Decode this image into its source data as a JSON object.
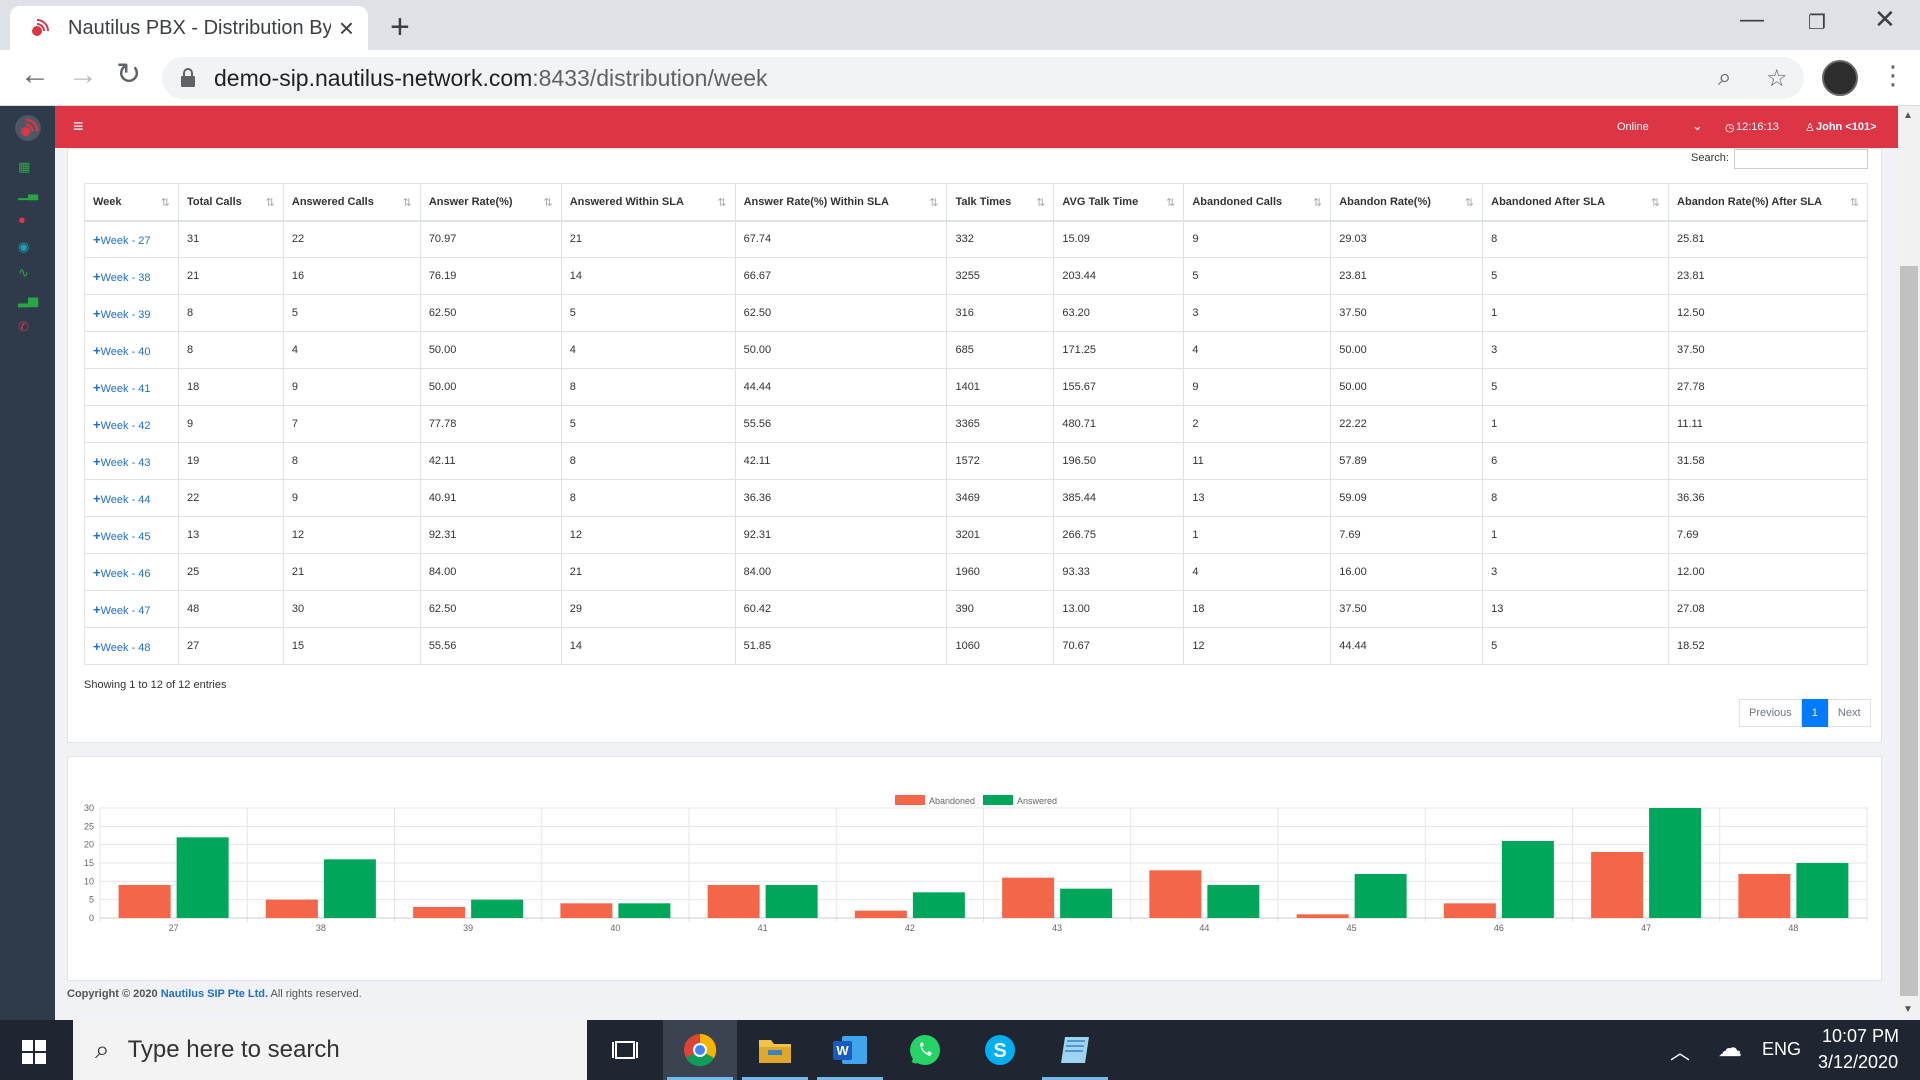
{
  "browser": {
    "tab_title": "Nautilus PBX - Distribution By Week",
    "url_host": "demo-sip.nautilus-network.com",
    "url_path": ":8433/distribution/week"
  },
  "topnav": {
    "status": "Online",
    "time": "12:16:13",
    "user": "John <101>"
  },
  "table": {
    "search_label": "Search:",
    "search_value": "",
    "columns": [
      "Week",
      "Total Calls",
      "Answered Calls",
      "Answer Rate(%)",
      "Answered Within SLA",
      "Answer Rate(%) Within SLA",
      "Talk Times",
      "AVG Talk Time",
      "Abandoned Calls",
      "Abandon Rate(%)",
      "Abandoned After SLA",
      "Abandon Rate(%) After SLA"
    ],
    "rows": [
      [
        "Week - 27",
        "31",
        "22",
        "70.97",
        "21",
        "67.74",
        "332",
        "15.09",
        "9",
        "29.03",
        "8",
        "25.81"
      ],
      [
        "Week - 38",
        "21",
        "16",
        "76.19",
        "14",
        "66.67",
        "3255",
        "203.44",
        "5",
        "23.81",
        "5",
        "23.81"
      ],
      [
        "Week - 39",
        "8",
        "5",
        "62.50",
        "5",
        "62.50",
        "316",
        "63.20",
        "3",
        "37.50",
        "1",
        "12.50"
      ],
      [
        "Week - 40",
        "8",
        "4",
        "50.00",
        "4",
        "50.00",
        "685",
        "171.25",
        "4",
        "50.00",
        "3",
        "37.50"
      ],
      [
        "Week - 41",
        "18",
        "9",
        "50.00",
        "8",
        "44.44",
        "1401",
        "155.67",
        "9",
        "50.00",
        "5",
        "27.78"
      ],
      [
        "Week - 42",
        "9",
        "7",
        "77.78",
        "5",
        "55.56",
        "3365",
        "480.71",
        "2",
        "22.22",
        "1",
        "11.11"
      ],
      [
        "Week - 43",
        "19",
        "8",
        "42.11",
        "8",
        "42.11",
        "1572",
        "196.50",
        "11",
        "57.89",
        "6",
        "31.58"
      ],
      [
        "Week - 44",
        "22",
        "9",
        "40.91",
        "8",
        "36.36",
        "3469",
        "385.44",
        "13",
        "59.09",
        "8",
        "36.36"
      ],
      [
        "Week - 45",
        "13",
        "12",
        "92.31",
        "12",
        "92.31",
        "3201",
        "266.75",
        "1",
        "7.69",
        "1",
        "7.69"
      ],
      [
        "Week - 46",
        "25",
        "21",
        "84.00",
        "21",
        "84.00",
        "1960",
        "93.33",
        "4",
        "16.00",
        "3",
        "12.00"
      ],
      [
        "Week - 47",
        "48",
        "30",
        "62.50",
        "29",
        "60.42",
        "390",
        "13.00",
        "18",
        "37.50",
        "13",
        "27.08"
      ],
      [
        "Week - 48",
        "27",
        "15",
        "55.56",
        "14",
        "51.85",
        "1060",
        "70.67",
        "12",
        "44.44",
        "5",
        "18.52"
      ]
    ],
    "info": "Showing 1 to 12 of 12 entries",
    "pager": {
      "previous": "Previous",
      "page": "1",
      "next": "Next"
    }
  },
  "chart_data": {
    "type": "bar",
    "categories": [
      "27",
      "38",
      "39",
      "40",
      "41",
      "42",
      "43",
      "44",
      "45",
      "46",
      "47",
      "48"
    ],
    "series": [
      {
        "name": "Abandoned",
        "color": "#f4664a",
        "values": [
          9,
          5,
          3,
          4,
          9,
          2,
          11,
          13,
          1,
          4,
          18,
          12
        ]
      },
      {
        "name": "Answered",
        "color": "#00a65a",
        "values": [
          22,
          16,
          5,
          4,
          9,
          7,
          8,
          9,
          12,
          21,
          30,
          15
        ]
      }
    ],
    "yticks": [
      "0",
      "5",
      "10",
      "15",
      "20",
      "25",
      "30"
    ],
    "ylim": [
      0,
      30
    ],
    "legend": "top-center",
    "grid": true
  },
  "footer": {
    "prefix": "Copyright © 2020",
    "brand": "Nautilus SIP Pte Ltd.",
    "suffix": "All rights reserved."
  },
  "taskbar": {
    "search_placeholder": "Type here to search",
    "lang": "ENG",
    "time": "10:07 PM",
    "date": "3/12/2020"
  }
}
